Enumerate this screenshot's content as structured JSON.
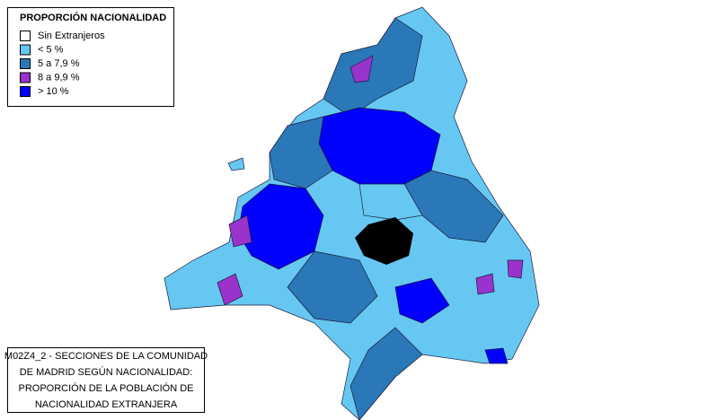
{
  "legend": {
    "title": "PROPORCIÓN NACIONALIDAD",
    "items": [
      {
        "label": "Sin Extranjeros",
        "color": "#ffffff"
      },
      {
        "label": "< 5 %",
        "color": "#66c8f2"
      },
      {
        "label": "5 a 7,9 %",
        "color": "#2b78b8"
      },
      {
        "label": "8 a 9,9 %",
        "color": "#9933cc"
      },
      {
        "label": "> 10 %",
        "color": "#0000ff"
      }
    ]
  },
  "caption": {
    "lines": [
      "M02Z4_2 - SECCIONES DE LA COMUNIDAD",
      "DE MADRID SEGÚN NACIONALIDAD:",
      "PROPORCIÓN DE LA POBLACIÓN DE",
      "NACIONALIDAD EXTRANJERA"
    ]
  }
}
